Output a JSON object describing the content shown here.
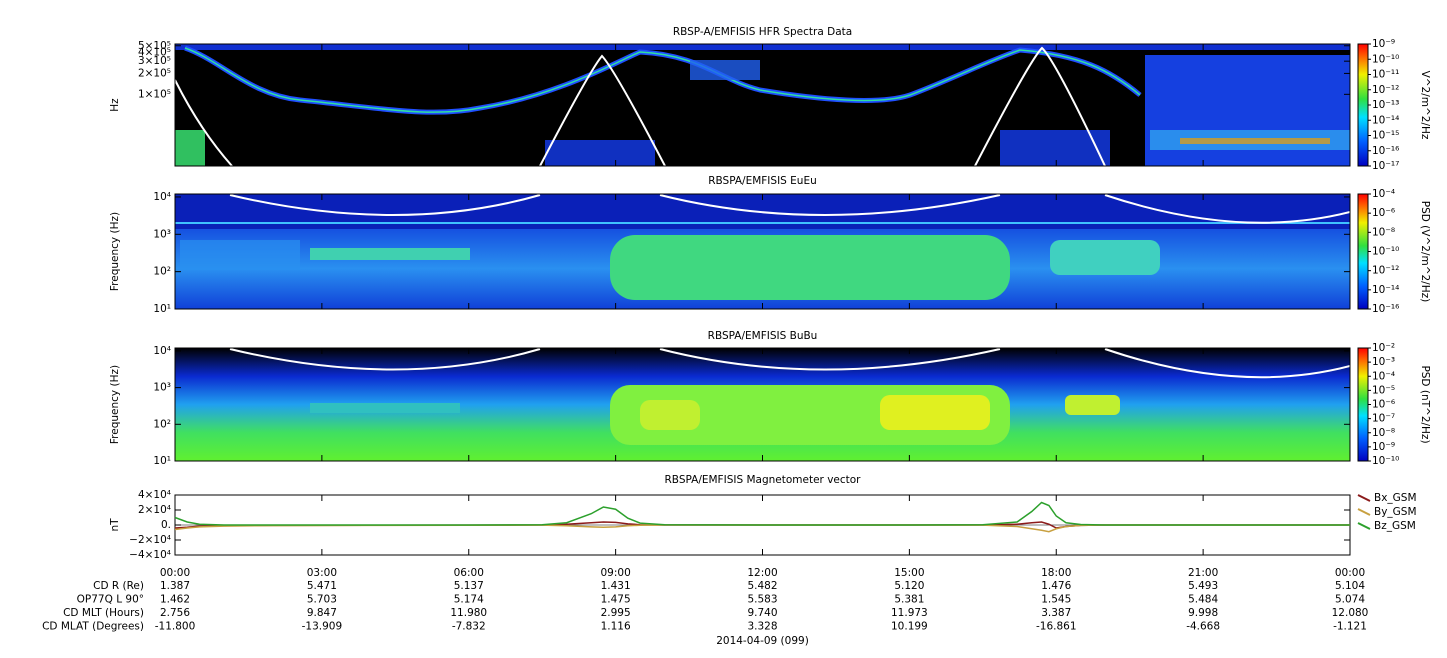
{
  "chart_data": [
    {
      "type": "spectrogram",
      "title": "RBSP-A/EMFISIS  HFR Spectra Data",
      "ylabel": "Hz",
      "log_y": true,
      "ylim": [
        9300,
        530000
      ],
      "yticks": [
        {
          "value": 500000,
          "label": "5×10⁵"
        },
        {
          "value": 400000,
          "label": "4×10⁵"
        },
        {
          "value": 300000,
          "label": "3×10⁵"
        },
        {
          "value": 200000,
          "label": "2×10⁵"
        },
        {
          "value": 100000,
          "label": "1×10⁵"
        }
      ],
      "colorbar": {
        "label": "V^2/m^2/Hz",
        "lim": [
          1e-17,
          1e-09
        ],
        "ticks": [
          {
            "value": 1e-09,
            "label": "10⁻⁹"
          },
          {
            "value": 1e-10,
            "label": "10⁻¹⁰"
          },
          {
            "value": 1e-11,
            "label": "10⁻¹¹"
          },
          {
            "value": 1e-12,
            "label": "10⁻¹²"
          },
          {
            "value": 1e-13,
            "label": "10⁻¹³"
          },
          {
            "value": 1e-14,
            "label": "10⁻¹⁴"
          },
          {
            "value": 1e-15,
            "label": "10⁻¹⁵"
          },
          {
            "value": 1e-16,
            "label": "10⁻¹⁶"
          },
          {
            "value": 1e-17,
            "label": "10⁻¹⁷"
          }
        ]
      }
    },
    {
      "type": "spectrogram",
      "title": "RBSPA/EMFISIS  EuEu",
      "ylabel": "Frequency (Hz)",
      "log_y": true,
      "ylim": [
        10,
        12000
      ],
      "yticks": [
        {
          "value": 10000,
          "label": "10⁴"
        },
        {
          "value": 1000,
          "label": "10³"
        },
        {
          "value": 100,
          "label": "10²"
        },
        {
          "value": 10,
          "label": "10¹"
        }
      ],
      "colorbar": {
        "label": "PSD (V^2/m^2/Hz)",
        "lim": [
          1e-16,
          0.0001
        ],
        "ticks": [
          {
            "value": 0.0001,
            "label": "10⁻⁴"
          },
          {
            "value": 1e-06,
            "label": "10⁻⁶"
          },
          {
            "value": 1e-08,
            "label": "10⁻⁸"
          },
          {
            "value": 1e-10,
            "label": "10⁻¹⁰"
          },
          {
            "value": 1e-12,
            "label": "10⁻¹²"
          },
          {
            "value": 1e-14,
            "label": "10⁻¹⁴"
          },
          {
            "value": 1e-16,
            "label": "10⁻¹⁶"
          }
        ]
      }
    },
    {
      "type": "spectrogram",
      "title": "RBSPA/EMFISIS  BuBu",
      "ylabel": "Frequency (Hz)",
      "log_y": true,
      "ylim": [
        10,
        12000
      ],
      "yticks": [
        {
          "value": 10000,
          "label": "10⁴"
        },
        {
          "value": 1000,
          "label": "10³"
        },
        {
          "value": 100,
          "label": "10²"
        },
        {
          "value": 10,
          "label": "10¹"
        }
      ],
      "colorbar": {
        "label": "PSD (nT^2/Hz)",
        "lim": [
          1e-10,
          0.01
        ],
        "ticks": [
          {
            "value": 0.01,
            "label": "10⁻²"
          },
          {
            "value": 0.001,
            "label": "10⁻³"
          },
          {
            "value": 0.0001,
            "label": "10⁻⁴"
          },
          {
            "value": 1e-05,
            "label": "10⁻⁵"
          },
          {
            "value": 1e-06,
            "label": "10⁻⁶"
          },
          {
            "value": 1e-07,
            "label": "10⁻⁷"
          },
          {
            "value": 1e-08,
            "label": "10⁻⁸"
          },
          {
            "value": 1e-09,
            "label": "10⁻⁹"
          },
          {
            "value": 1e-10,
            "label": "10⁻¹⁰"
          }
        ]
      }
    },
    {
      "type": "line",
      "title": "RBSPA/EMFISIS  Magnetometer vector",
      "ylabel": "nT",
      "ylim": [
        -40000,
        40000
      ],
      "yticks": [
        {
          "value": 40000,
          "label": "4×10⁴"
        },
        {
          "value": 20000,
          "label": "2×10⁴"
        },
        {
          "value": 0,
          "label": "0."
        },
        {
          "value": -20000,
          "label": "−2×10⁴"
        },
        {
          "value": -40000,
          "label": "−4×10⁴"
        }
      ],
      "xlim": [
        0,
        24
      ],
      "xticks": [
        {
          "value": 0,
          "label": "00:00"
        },
        {
          "value": 3,
          "label": "03:00"
        },
        {
          "value": 6,
          "label": "06:00"
        },
        {
          "value": 9,
          "label": "09:00"
        },
        {
          "value": 12,
          "label": "12:00"
        },
        {
          "value": 15,
          "label": "15:00"
        },
        {
          "value": 18,
          "label": "18:00"
        },
        {
          "value": 21,
          "label": "21:00"
        },
        {
          "value": 24,
          "label": "00:00"
        }
      ],
      "x": [
        0,
        0.25,
        0.5,
        1,
        2,
        4,
        6,
        7.5,
        8,
        8.5,
        8.75,
        9,
        9.25,
        9.5,
        10,
        12,
        15,
        16.5,
        17.2,
        17.5,
        17.7,
        17.85,
        18,
        18.2,
        18.5,
        19,
        21,
        24
      ],
      "series": [
        {
          "name": "Bx_GSM",
          "color": "#8b1a1a",
          "values": [
            -4000,
            -3000,
            -1500,
            -800,
            -500,
            -300,
            -200,
            0,
            1000,
            3000,
            4000,
            3500,
            1500,
            400,
            0,
            0,
            0,
            0,
            1000,
            3000,
            4000,
            1000,
            -4000,
            -2000,
            -500,
            0,
            0,
            0
          ]
        },
        {
          "name": "By_GSM",
          "color": "#c8a040",
          "values": [
            -6000,
            -4000,
            -2500,
            -1500,
            -800,
            -500,
            -300,
            -200,
            -1000,
            -2500,
            -3000,
            -2500,
            -1000,
            -300,
            0,
            0,
            0,
            -200,
            -2000,
            -5000,
            -7000,
            -9000,
            -5000,
            -2000,
            -500,
            0,
            0,
            0
          ]
        },
        {
          "name": "Bz_GSM",
          "color": "#2ca02c",
          "values": [
            10000,
            4000,
            1000,
            0,
            0,
            0,
            0,
            300,
            3000,
            15000,
            24000,
            21000,
            9000,
            2500,
            300,
            0,
            0,
            300,
            4000,
            18000,
            30000,
            26000,
            12000,
            3000,
            600,
            0,
            0,
            0
          ]
        }
      ]
    }
  ],
  "ephemeris": {
    "rows": [
      {
        "label": "CD R (Re)",
        "values": [
          "1.387",
          "5.471",
          "5.137",
          "1.431",
          "5.482",
          "5.120",
          "1.476",
          "5.493",
          "5.104"
        ]
      },
      {
        "label": "OP77Q L 90°",
        "values": [
          "1.462",
          "5.703",
          "5.174",
          "1.475",
          "5.583",
          "5.381",
          "1.545",
          "5.484",
          "5.074"
        ]
      },
      {
        "label": "CD MLT (Hours)",
        "values": [
          "2.756",
          "9.847",
          "11.980",
          "2.995",
          "9.740",
          "11.973",
          "3.387",
          "9.998",
          "12.080"
        ]
      },
      {
        "label": "CD MLAT (Degrees)",
        "values": [
          "-11.800",
          "-13.909",
          "-7.832",
          "1.116",
          "3.328",
          "10.199",
          "-16.861",
          "-4.668",
          "-1.121"
        ]
      }
    ],
    "date_label": "2014-04-09 (099)"
  }
}
